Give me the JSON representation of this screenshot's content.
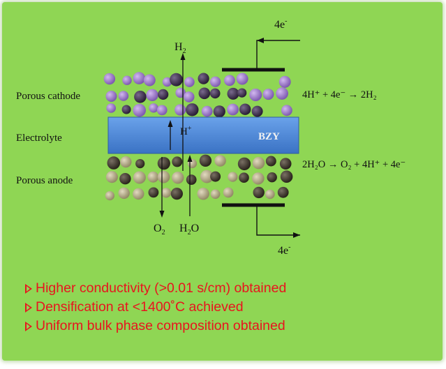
{
  "diagram": {
    "labels": {
      "top_electrons": "4e",
      "top_electrons_sup": "-",
      "h2": "H",
      "h2_sub": "2",
      "porous_cathode": "Porous cathode",
      "electrolyte": "Electrolyte",
      "porous_anode": "Porous anode",
      "h_plus": "H",
      "h_plus_sup": "+",
      "bzy": "BZY",
      "o2": "O",
      "o2_sub": "2",
      "h2o": "H",
      "h2o_sub": "2",
      "h2o_tail": "O",
      "bottom_electrons": "4e",
      "bottom_electrons_sup": "-",
      "cathode_reaction": "4H⁺ + 4e⁻ → 2H₂",
      "anode_reaction": "2H₂O → O₂ + 4H⁺ + 4e⁻"
    },
    "colors": {
      "panel": "#8fd654",
      "electrolyte": "#4a86d8",
      "cathode_particle_dark": "#3a2a4a",
      "cathode_particle_light": "#9a7ac8",
      "anode_particle_dark": "#3b3228",
      "anode_particle_light": "#b3a98a"
    }
  },
  "bullets": [
    "Higher conductivity (>0.01 s/cm) obtained",
    "Densification at <1400˚C achieved",
    "Uniform bulk phase composition obtained"
  ]
}
